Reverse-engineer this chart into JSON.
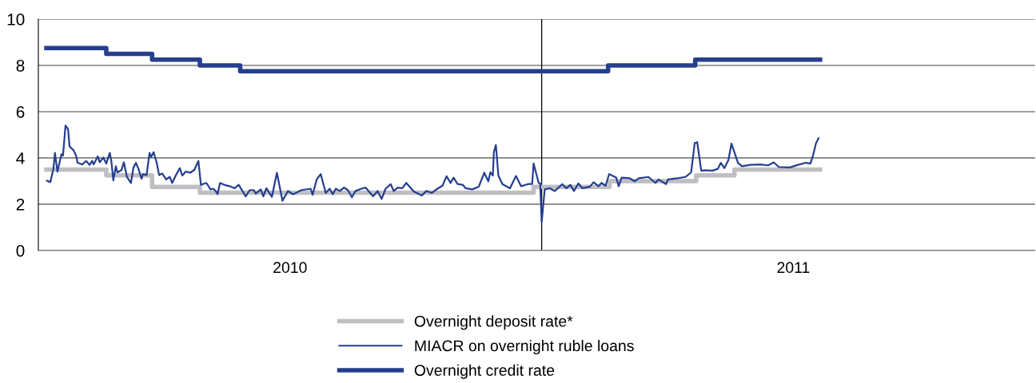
{
  "chart_data": {
    "type": "line",
    "xlim": [
      2010,
      2011.98
    ],
    "xticks": [
      {
        "value": 2010.5,
        "label": "2010"
      },
      {
        "value": 2011.5,
        "label": "2011"
      }
    ],
    "ylim": [
      0,
      10
    ],
    "yticks": [
      0,
      2,
      4,
      6,
      8,
      10
    ],
    "grid": "y",
    "legend": "bottom",
    "ref_lines": [
      {
        "axis": "x",
        "value": 2011,
        "label": null,
        "color": "#000000"
      }
    ],
    "series": [
      {
        "name": "Overnight deposit rate*",
        "type": "step",
        "color": "#bfbfc3",
        "x": [
          2010.016,
          2010.135,
          2010.226,
          2010.321,
          2010.984,
          2011.135,
          2011.307,
          2011.383,
          2011.553
        ],
        "values": [
          3.5,
          3.25,
          2.75,
          2.5,
          2.75,
          3.0,
          3.25,
          3.5,
          3.5
        ]
      },
      {
        "name": "MIACR on overnight ruble loans",
        "type": "line",
        "color": "#253f8e",
        "x": [
          2010.017,
          2010.024,
          2010.03,
          2010.033,
          2010.038,
          2010.046,
          2010.049,
          2010.054,
          2010.059,
          2010.062,
          2010.07,
          2010.075,
          2010.078,
          2010.087,
          2010.095,
          2010.102,
          2010.107,
          2010.11,
          2010.118,
          2010.122,
          2010.129,
          2010.135,
          2010.142,
          2010.145,
          2010.149,
          2010.154,
          2010.157,
          2010.165,
          2010.17,
          2010.176,
          2010.184,
          2010.189,
          2010.194,
          2010.199,
          2010.205,
          2010.208,
          2010.215,
          2010.221,
          2010.224,
          2010.229,
          2010.235,
          2010.24,
          2010.246,
          2010.254,
          2010.261,
          2010.266,
          2010.273,
          2010.281,
          2010.286,
          2010.293,
          2010.302,
          2010.31,
          2010.318,
          2010.323,
          2010.334,
          2010.342,
          2010.348,
          2010.353,
          2010.356,
          2010.361,
          2010.369,
          2010.38,
          2010.39,
          2010.398,
          2010.412,
          2010.42,
          2010.428,
          2010.432,
          2010.442,
          2010.447,
          2010.453,
          2010.464,
          2010.474,
          2010.485,
          2010.496,
          2010.506,
          2010.523,
          2010.541,
          2010.545,
          2010.553,
          2010.561,
          2010.571,
          2010.579,
          2010.585,
          2010.591,
          2010.599,
          2010.607,
          2010.615,
          2010.623,
          2010.63,
          2010.642,
          2010.65,
          2010.665,
          2010.674,
          2010.682,
          2010.69,
          2010.7,
          2010.706,
          2010.714,
          2010.723,
          2010.731,
          2010.746,
          2010.762,
          2010.771,
          2010.782,
          2010.793,
          2010.803,
          2010.811,
          2010.819,
          2010.825,
          2010.833,
          2010.843,
          2010.849,
          2010.862,
          2010.875,
          2010.886,
          2010.894,
          2010.898,
          2010.903,
          2010.905,
          2010.909,
          2010.914,
          2010.922,
          2010.937,
          2010.949,
          2010.959,
          2010.973,
          2010.981,
          2010.984,
          2010.994,
          2010.997,
          2011.0,
          2011.006,
          2011.016,
          2011.026,
          2011.041,
          2011.049,
          2011.057,
          2011.064,
          2011.073,
          2011.081,
          2011.096,
          2011.103,
          2011.113,
          2011.119,
          2011.127,
          2011.134,
          2011.148,
          2011.153,
          2011.159,
          2011.175,
          2011.185,
          2011.193,
          2011.212,
          2011.226,
          2011.232,
          2011.247,
          2011.251,
          2011.27,
          2011.286,
          2011.296,
          2011.297,
          2011.304,
          2011.309,
          2011.317,
          2011.326,
          2011.339,
          2011.35,
          2011.356,
          2011.363,
          2011.371,
          2011.377,
          2011.39,
          2011.398,
          2011.414,
          2011.434,
          2011.45,
          2011.461,
          2011.471,
          2011.493,
          2011.509,
          2011.525,
          2011.534,
          2011.539,
          2011.545,
          2011.55
        ],
        "values": [
          3.01,
          2.96,
          3.53,
          4.22,
          3.41,
          4.16,
          4.1,
          5.4,
          5.25,
          4.5,
          4.33,
          4.1,
          3.79,
          3.72,
          3.87,
          3.7,
          3.87,
          3.72,
          4.07,
          3.81,
          4.02,
          3.76,
          4.22,
          3.87,
          3.03,
          3.64,
          3.38,
          3.47,
          3.81,
          3.18,
          2.92,
          3.58,
          3.79,
          3.53,
          3.1,
          3.3,
          3.26,
          4.22,
          4.04,
          4.25,
          3.81,
          3.26,
          3.33,
          3.07,
          3.18,
          2.92,
          3.24,
          3.56,
          3.24,
          3.41,
          3.36,
          3.49,
          3.87,
          2.84,
          2.92,
          2.64,
          2.67,
          2.55,
          2.44,
          2.92,
          2.84,
          2.78,
          2.69,
          2.84,
          2.34,
          2.61,
          2.61,
          2.46,
          2.64,
          2.34,
          2.69,
          2.32,
          3.36,
          2.15,
          2.57,
          2.43,
          2.61,
          2.67,
          2.41,
          3.07,
          3.3,
          2.49,
          2.67,
          2.43,
          2.67,
          2.57,
          2.72,
          2.61,
          2.3,
          2.57,
          2.67,
          2.72,
          2.34,
          2.57,
          2.23,
          2.67,
          2.87,
          2.57,
          2.72,
          2.69,
          2.92,
          2.55,
          2.38,
          2.57,
          2.49,
          2.67,
          2.8,
          3.21,
          2.92,
          3.15,
          2.87,
          2.84,
          2.69,
          2.64,
          2.76,
          3.36,
          2.99,
          3.38,
          3.24,
          4.25,
          4.56,
          3.24,
          2.87,
          2.69,
          3.22,
          2.78,
          2.87,
          2.87,
          3.76,
          2.92,
          2.9,
          1.23,
          2.64,
          2.69,
          2.57,
          2.87,
          2.69,
          2.84,
          2.57,
          2.9,
          2.69,
          2.76,
          2.95,
          2.78,
          2.92,
          2.8,
          3.3,
          3.15,
          2.78,
          3.15,
          3.12,
          2.99,
          3.12,
          3.18,
          2.92,
          3.07,
          2.87,
          3.07,
          3.12,
          3.18,
          3.36,
          3.38,
          4.64,
          4.68,
          3.45,
          3.47,
          3.45,
          3.53,
          3.79,
          3.56,
          3.91,
          4.62,
          3.79,
          3.64,
          3.7,
          3.72,
          3.68,
          3.81,
          3.61,
          3.59,
          3.7,
          3.79,
          3.76,
          4.1,
          4.64,
          4.85
        ]
      },
      {
        "name": "Overnight credit rate",
        "type": "step",
        "color": "#253f8e",
        "x": [
          2010.016,
          2010.135,
          2010.226,
          2010.321,
          2010.401,
          2011.132,
          2011.305,
          2011.553
        ],
        "values": [
          8.75,
          8.5,
          8.25,
          8.0,
          7.75,
          8.0,
          8.25,
          8.25
        ]
      }
    ]
  }
}
